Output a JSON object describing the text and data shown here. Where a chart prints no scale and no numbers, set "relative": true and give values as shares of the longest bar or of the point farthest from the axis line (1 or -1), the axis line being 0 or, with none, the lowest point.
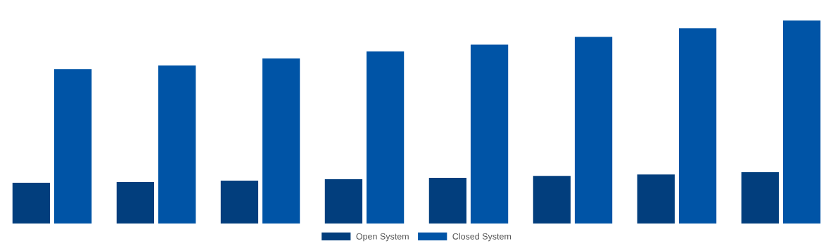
{
  "chart_data": {
    "type": "bar",
    "relative": true,
    "categories": [
      null,
      null,
      null,
      null,
      null,
      null,
      null,
      null
    ],
    "series": [
      {
        "name": "Open System",
        "color": "#023e7d",
        "values": [
          0.201,
          0.204,
          0.211,
          0.218,
          0.225,
          0.235,
          0.242,
          0.253
        ]
      },
      {
        "name": "Closed System",
        "color": "#0054a6",
        "values": [
          0.761,
          0.779,
          0.813,
          0.848,
          0.882,
          0.92,
          0.962,
          1
        ]
      }
    ],
    "legend": "bottom",
    "grid": false
  }
}
